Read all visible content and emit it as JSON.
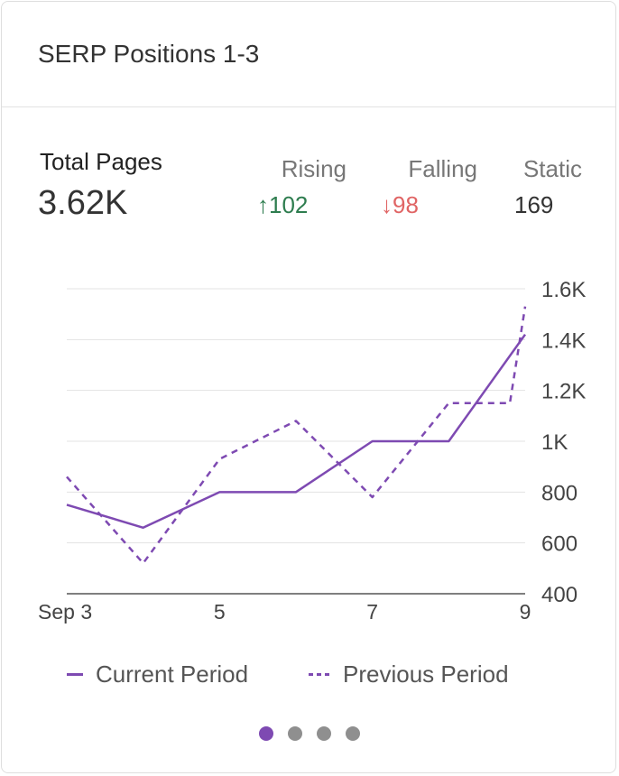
{
  "header": {
    "title": "SERP Positions 1-3"
  },
  "summary": {
    "total_label": "Total Pages",
    "total_value": "3.62K",
    "rising_label": "Rising",
    "rising_value": "↑102",
    "falling_label": "Falling",
    "falling_value": "↓98",
    "static_label": "Static",
    "static_value": "169"
  },
  "colors": {
    "series": "#7e4ab2",
    "rising": "#2e7d4f",
    "falling": "#e06565"
  },
  "chart_data": {
    "type": "line",
    "x": [
      3,
      4,
      5,
      6,
      7,
      8,
      9
    ],
    "x_tick_values": [
      3,
      5,
      7,
      9
    ],
    "x_tick_labels": [
      "Sep 3",
      "5",
      "7",
      "9"
    ],
    "ylim": [
      400,
      1600
    ],
    "y_tick_values": [
      400,
      600,
      800,
      1000,
      1200,
      1400,
      1600
    ],
    "y_tick_labels": [
      "400",
      "600",
      "800",
      "1K",
      "1.2K",
      "1.4K",
      "1.6K"
    ],
    "y_axis_position": "right",
    "grid": true,
    "legend_position": "bottom",
    "series": [
      {
        "name": "Current Period",
        "style": "solid",
        "values": [
          750,
          660,
          800,
          800,
          1000,
          1000,
          1420
        ]
      },
      {
        "name": "Previous Period",
        "style": "dashed",
        "values": [
          860,
          520,
          930,
          1080,
          780,
          1150,
          1150,
          1530
        ],
        "x": [
          3,
          4,
          5,
          6,
          7,
          8,
          8.8,
          9
        ]
      }
    ]
  },
  "legend": {
    "current_label": "Current Period",
    "previous_label": "Previous Period"
  },
  "pager": {
    "count": 4,
    "active": 0
  }
}
